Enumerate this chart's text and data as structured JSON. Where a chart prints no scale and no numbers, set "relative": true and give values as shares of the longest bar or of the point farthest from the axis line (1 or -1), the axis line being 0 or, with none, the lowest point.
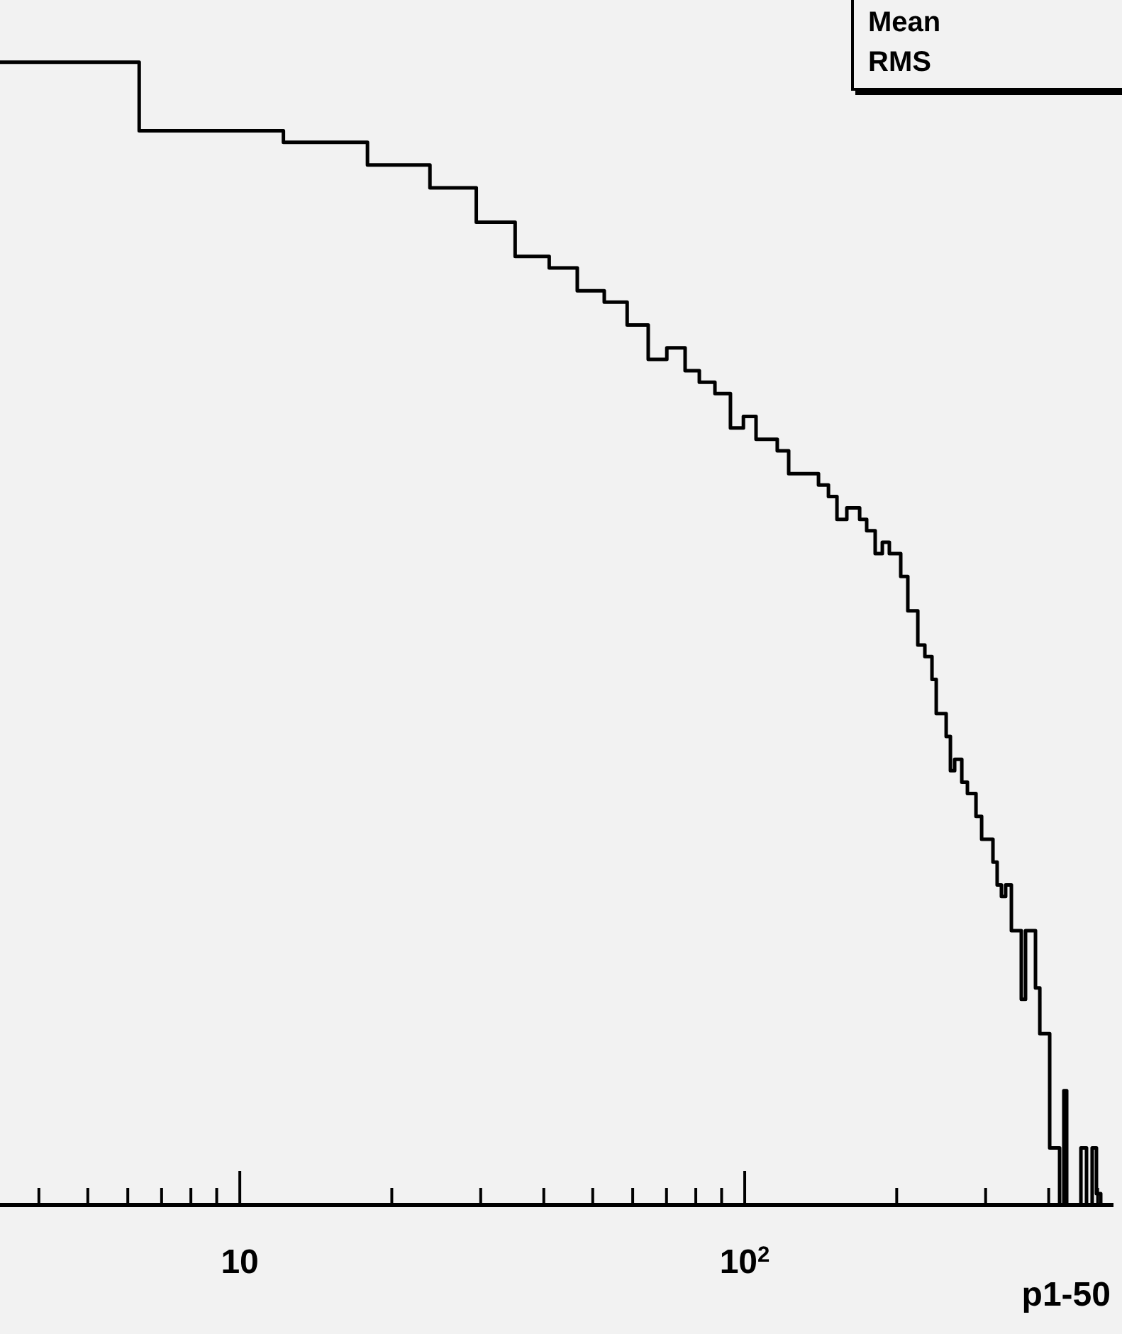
{
  "chart_data": {
    "type": "step",
    "xlabel": "p1-50",
    "log": "x",
    "relative": true,
    "color": "#000000",
    "annotations": [
      "Mean",
      "RMS"
    ],
    "xlim": [
      3.35,
      537.5
    ],
    "xticks": [
      {
        "value": 4,
        "label": null
      },
      {
        "value": 5,
        "label": null
      },
      {
        "value": 6,
        "label": null
      },
      {
        "value": 7,
        "label": null
      },
      {
        "value": 8,
        "label": null
      },
      {
        "value": 9,
        "label": null
      },
      {
        "value": 10,
        "label": "10"
      },
      {
        "value": 20,
        "label": null
      },
      {
        "value": 30,
        "label": null
      },
      {
        "value": 40,
        "label": null
      },
      {
        "value": 50,
        "label": null
      },
      {
        "value": 60,
        "label": null
      },
      {
        "value": 70,
        "label": null
      },
      {
        "value": 80,
        "label": null
      },
      {
        "value": 90,
        "label": null
      },
      {
        "value": 100,
        "label": "10$^{2}$"
      },
      {
        "value": 200,
        "label": null
      },
      {
        "value": 300,
        "label": null
      },
      {
        "value": 400,
        "label": null
      },
      {
        "value": 500,
        "label": null
      }
    ],
    "x": [
      3.35,
      6.32,
      12.2,
      17.9,
      23.8,
      29.4,
      35.1,
      41.0,
      46.6,
      52.7,
      58.5,
      64.4,
      70.1,
      76.2,
      81.3,
      87.3,
      93.7,
      99.4,
      105.3,
      110.9,
      116.0,
      122.2,
      132.9,
      140.0,
      146.5,
      152.3,
      159.3,
      168.9,
      174.4,
      181.3,
      187.3,
      193.4,
      203.7,
      210.4,
      220.2,
      227.4,
      234.9,
      239.5,
      250.6,
      255.5,
      260.5,
      269.1,
      276.1,
      287.1,
      294.6,
      304.3,
      310.2,
      316.2,
      322.4,
      328.7,
      337.4,
      353.0,
      359.9,
      376.6,
      384.1,
      401.8,
      420.4,
      428.6,
      434.2,
      463.3,
      475.3,
      487.7,
      497.3,
      507.1
    ],
    "values": [
      1.0,
      0.94,
      0.93,
      0.91,
      0.89,
      0.86,
      0.83,
      0.82,
      0.8,
      0.79,
      0.77,
      0.74,
      0.75,
      0.73,
      0.72,
      0.71,
      0.68,
      0.69,
      0.67,
      0.67,
      0.66,
      0.64,
      0.64,
      0.63,
      0.62,
      0.6,
      0.61,
      0.6,
      0.59,
      0.57,
      0.58,
      0.57,
      0.55,
      0.52,
      0.49,
      0.48,
      0.46,
      0.43,
      0.41,
      0.38,
      0.39,
      0.37,
      0.36,
      0.34,
      0.32,
      0.32,
      0.3,
      0.28,
      0.27,
      0.28,
      0.24,
      0.18,
      0.24,
      0.19,
      0.15,
      0.05,
      0,
      0.1,
      0,
      0.05,
      0,
      0.05,
      0.01,
      0
    ]
  }
}
